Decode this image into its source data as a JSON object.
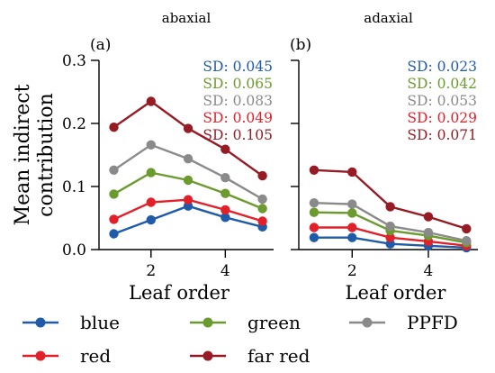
{
  "colors": {
    "blue": "#1f5ba8",
    "green": "#6b9a2e",
    "PPFD": "#8a8a8a",
    "red": "#e2202a",
    "far red": "#961b24"
  },
  "ylabel": "Mean indirect contribution",
  "ylabel_lines": [
    "Mean indirect",
    "contribution"
  ],
  "legend": [
    "blue",
    "green",
    "PPFD",
    "red",
    "far red"
  ],
  "chart_data": [
    {
      "type": "line",
      "title": "abaxial",
      "panel_label": "(a)",
      "xlabel": "Leaf order",
      "ylabel": "Mean indirect contribution",
      "x": [
        1,
        2,
        3,
        4,
        5
      ],
      "xticks": [
        2,
        4
      ],
      "ylim": [
        0,
        0.3
      ],
      "yticks": [
        "0.0",
        "0.1",
        "0.2",
        "0.3"
      ],
      "series": [
        {
          "name": "blue",
          "values": [
            0.025,
            0.047,
            0.069,
            0.051,
            0.036
          ],
          "sd": "SD: 0.045"
        },
        {
          "name": "green",
          "values": [
            0.088,
            0.122,
            0.11,
            0.089,
            0.065
          ],
          "sd": "SD: 0.065"
        },
        {
          "name": "PPFD",
          "values": [
            0.126,
            0.166,
            0.144,
            0.114,
            0.08
          ],
          "sd": "SD: 0.083"
        },
        {
          "name": "red",
          "values": [
            0.048,
            0.075,
            0.079,
            0.063,
            0.045
          ],
          "sd": "SD: 0.049"
        },
        {
          "name": "far red",
          "values": [
            0.194,
            0.235,
            0.192,
            0.159,
            0.117
          ],
          "sd": "SD: 0.105"
        }
      ]
    },
    {
      "type": "line",
      "title": "adaxial",
      "panel_label": "(b)",
      "xlabel": "Leaf order",
      "x": [
        1,
        2,
        3,
        4,
        5
      ],
      "xticks": [
        2,
        4
      ],
      "ylim": [
        0,
        0.3
      ],
      "series": [
        {
          "name": "blue",
          "values": [
            0.019,
            0.019,
            0.009,
            0.006,
            0.003
          ],
          "sd": "SD: 0.023"
        },
        {
          "name": "green",
          "values": [
            0.059,
            0.058,
            0.03,
            0.022,
            0.011
          ],
          "sd": "SD: 0.042"
        },
        {
          "name": "PPFD",
          "values": [
            0.074,
            0.072,
            0.037,
            0.027,
            0.014
          ],
          "sd": "SD: 0.053"
        },
        {
          "name": "red",
          "values": [
            0.035,
            0.035,
            0.019,
            0.013,
            0.006
          ],
          "sd": "SD: 0.029"
        },
        {
          "name": "far red",
          "values": [
            0.126,
            0.123,
            0.068,
            0.052,
            0.033
          ],
          "sd": "SD: 0.071"
        }
      ]
    }
  ]
}
